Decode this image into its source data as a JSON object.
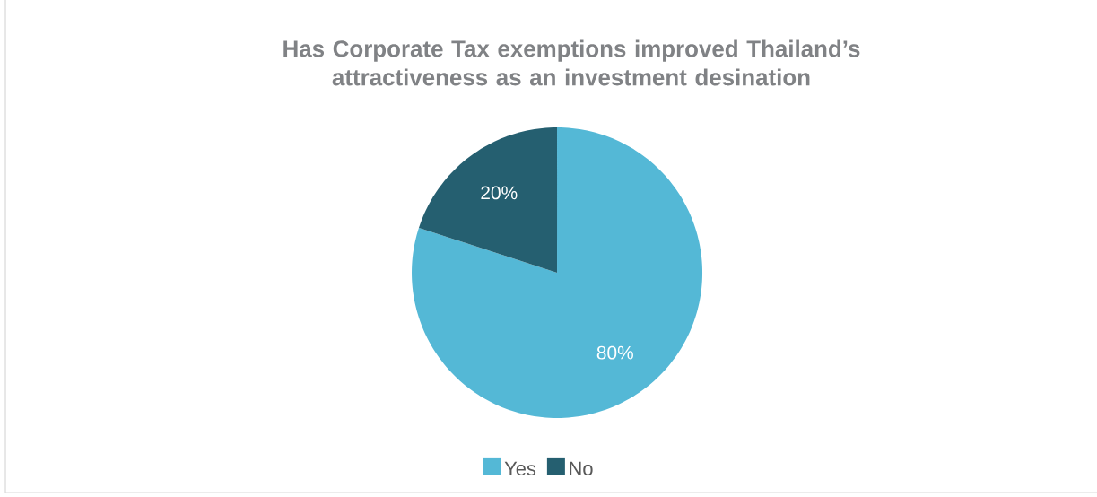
{
  "chart_data": {
    "type": "pie",
    "title": "Has Corporate Tax exemptions improved Thailand’s attractiveness as an investment desination",
    "categories": [
      "Yes",
      "No"
    ],
    "values": [
      80,
      20
    ],
    "colors": [
      "#54b8d6",
      "#255f70"
    ],
    "value_labels": [
      "80%",
      "20%"
    ],
    "legend": "bottom"
  }
}
